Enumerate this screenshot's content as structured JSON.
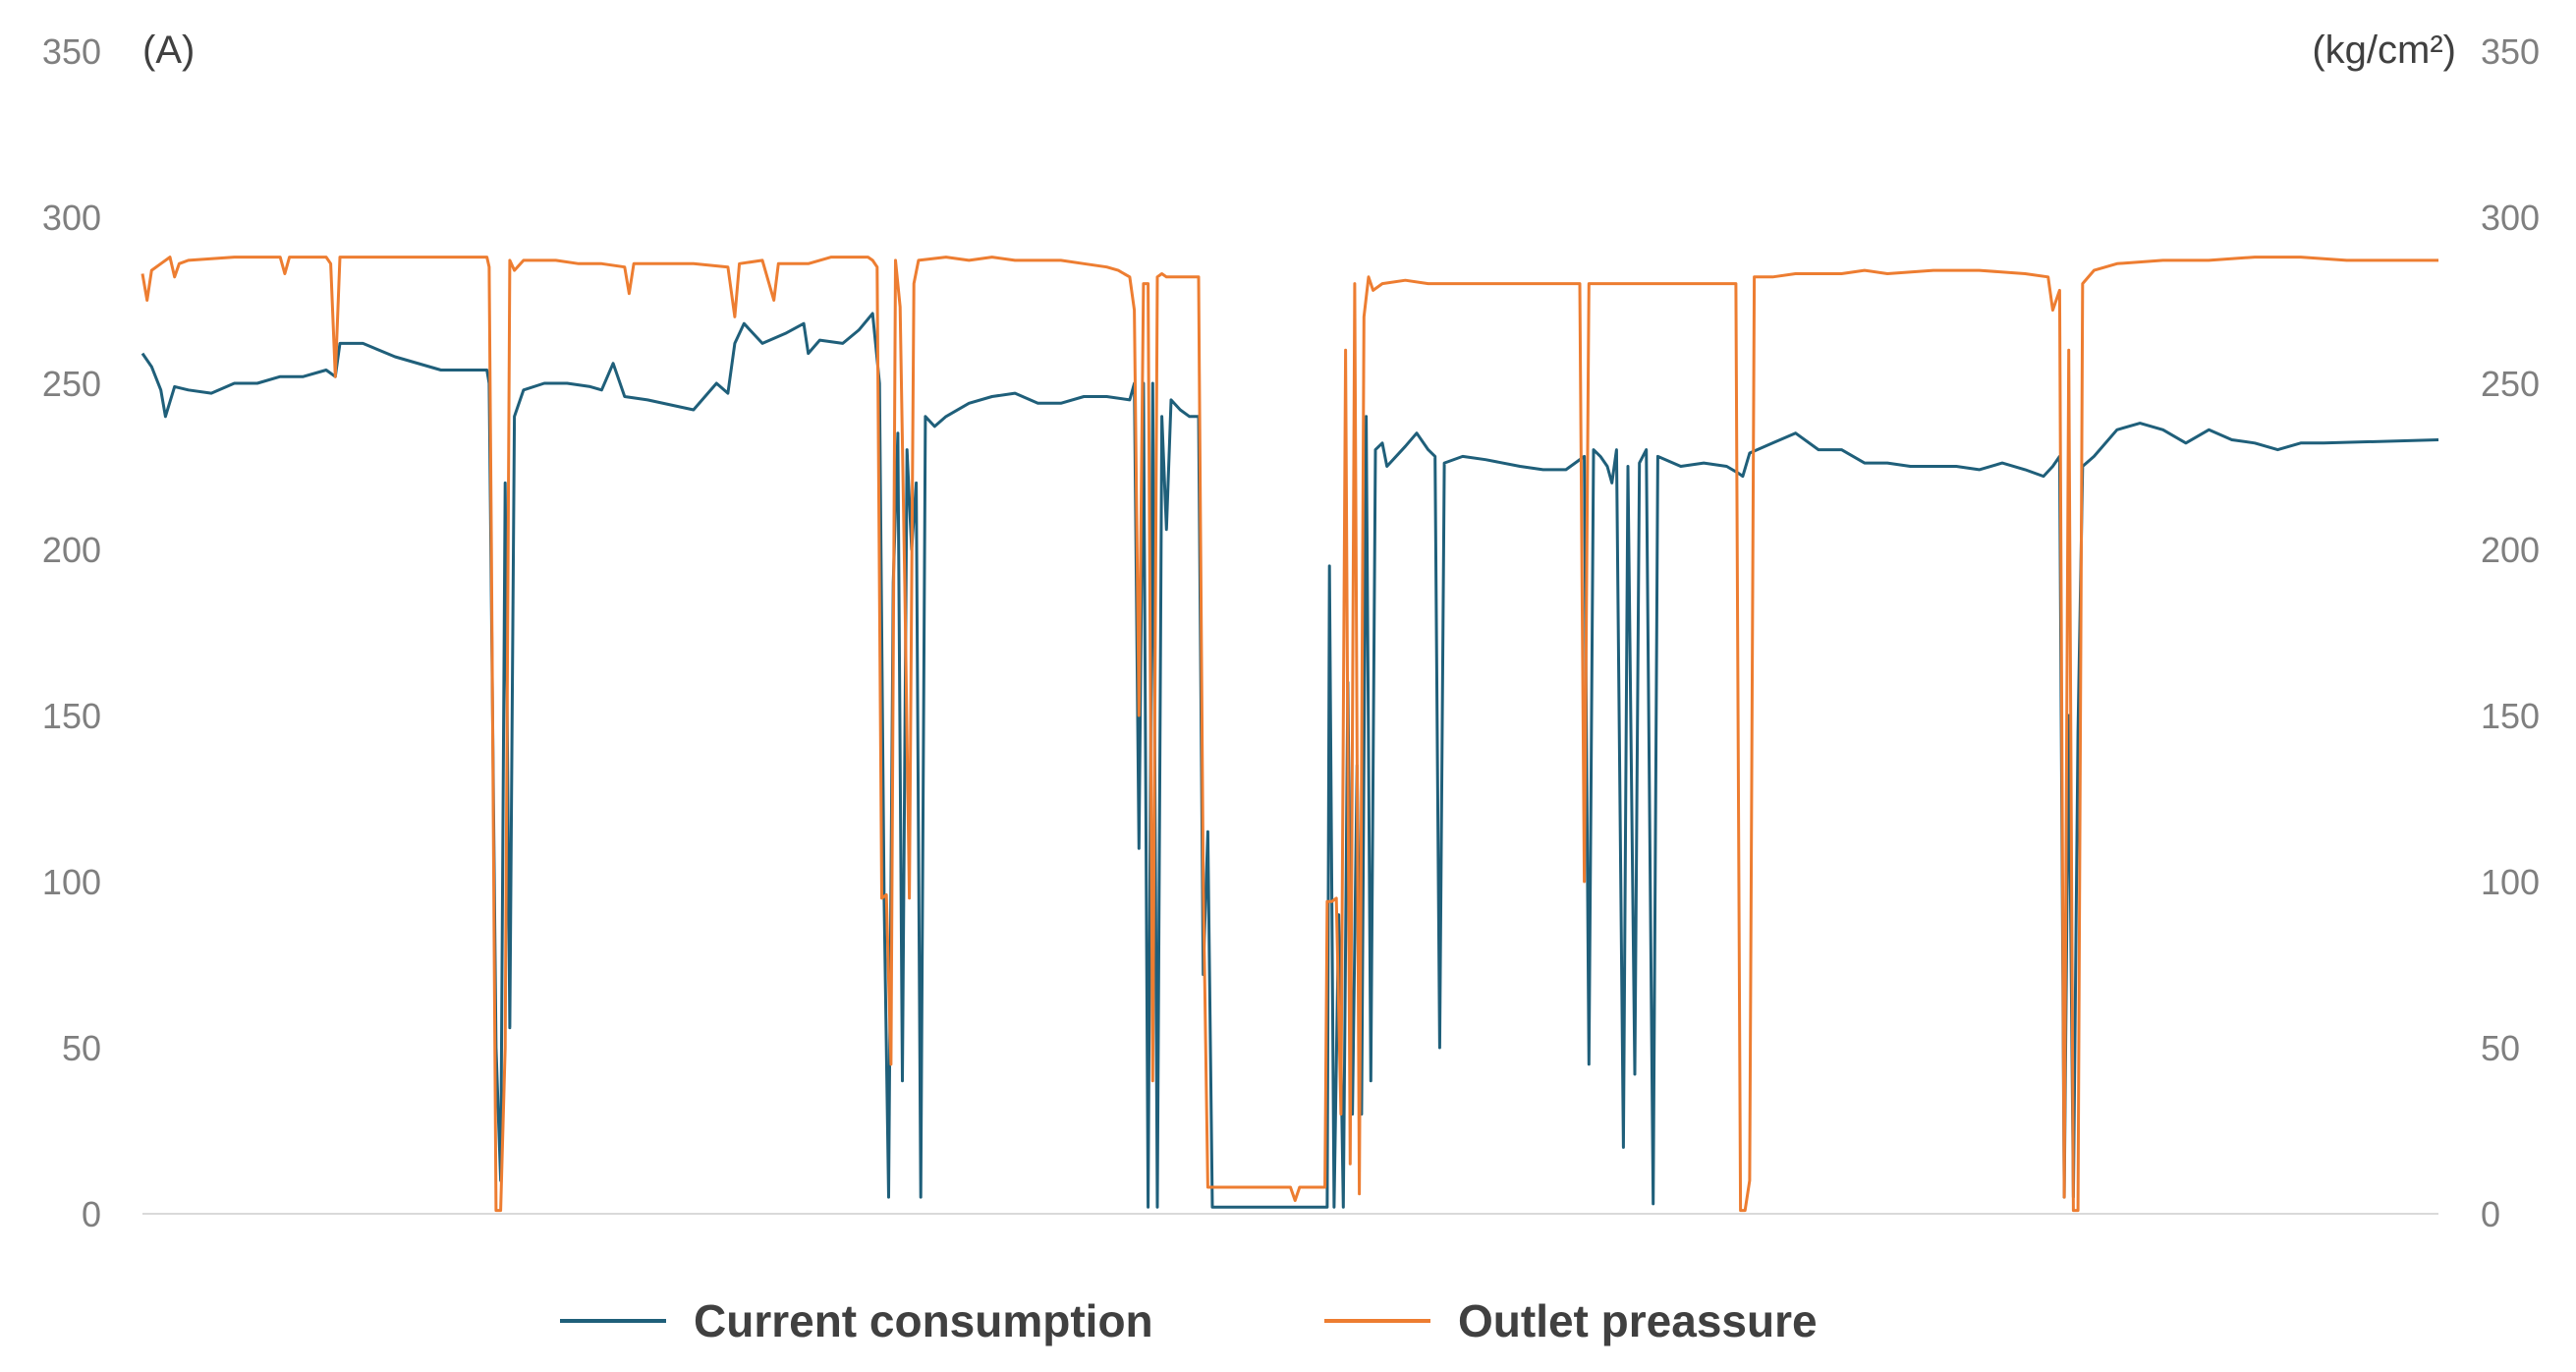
{
  "chart_data": {
    "type": "line",
    "title": "",
    "xlabel": "",
    "y_left": {
      "unit": "(A)",
      "range": [
        0,
        350
      ],
      "ticks": [
        0,
        50,
        100,
        150,
        200,
        250,
        300,
        350
      ]
    },
    "y_right": {
      "unit": "(kg/cm²)",
      "range": [
        0,
        350
      ],
      "ticks": [
        0,
        50,
        100,
        150,
        200,
        250,
        300,
        350
      ]
    },
    "x_range": [
      0,
      1000
    ],
    "grid": false,
    "legend_position": "bottom-center",
    "colors": {
      "current": "#1f5f7a",
      "pressure": "#ed7d31"
    },
    "series": [
      {
        "name": "Current consumption",
        "axis": "left",
        "points": [
          [
            0,
            259
          ],
          [
            4,
            255
          ],
          [
            8,
            248
          ],
          [
            10,
            240
          ],
          [
            14,
            249
          ],
          [
            20,
            248
          ],
          [
            30,
            247
          ],
          [
            40,
            250
          ],
          [
            50,
            250
          ],
          [
            60,
            252
          ],
          [
            70,
            252
          ],
          [
            80,
            254
          ],
          [
            84,
            252
          ],
          [
            86,
            262
          ],
          [
            96,
            262
          ],
          [
            110,
            258
          ],
          [
            130,
            254
          ],
          [
            150,
            254
          ],
          [
            151,
            250
          ],
          [
            154,
            50
          ],
          [
            156,
            10
          ],
          [
            158,
            220
          ],
          [
            160,
            56
          ],
          [
            162,
            240
          ],
          [
            166,
            248
          ],
          [
            175,
            250
          ],
          [
            185,
            250
          ],
          [
            195,
            249
          ],
          [
            200,
            248
          ],
          [
            205,
            256
          ],
          [
            210,
            246
          ],
          [
            220,
            245
          ],
          [
            240,
            242
          ],
          [
            250,
            250
          ],
          [
            255,
            247
          ],
          [
            258,
            262
          ],
          [
            262,
            268
          ],
          [
            270,
            262
          ],
          [
            280,
            265
          ],
          [
            288,
            268
          ],
          [
            290,
            259
          ],
          [
            295,
            263
          ],
          [
            305,
            262
          ],
          [
            312,
            266
          ],
          [
            318,
            271
          ],
          [
            321,
            250
          ],
          [
            323,
            95
          ],
          [
            325,
            5
          ],
          [
            327,
            190
          ],
          [
            329,
            235
          ],
          [
            331,
            40
          ],
          [
            333,
            230
          ],
          [
            335,
            200
          ],
          [
            337,
            220
          ],
          [
            339,
            5
          ],
          [
            341,
            240
          ],
          [
            345,
            237
          ],
          [
            350,
            240
          ],
          [
            360,
            244
          ],
          [
            370,
            246
          ],
          [
            380,
            247
          ],
          [
            390,
            244
          ],
          [
            400,
            244
          ],
          [
            410,
            246
          ],
          [
            420,
            246
          ],
          [
            430,
            245
          ],
          [
            432,
            250
          ],
          [
            434,
            110
          ],
          [
            436,
            250
          ],
          [
            438,
            2
          ],
          [
            440,
            250
          ],
          [
            442,
            2
          ],
          [
            444,
            240
          ],
          [
            446,
            206
          ],
          [
            448,
            245
          ],
          [
            452,
            242
          ],
          [
            456,
            240
          ],
          [
            460,
            240
          ],
          [
            462,
            72
          ],
          [
            464,
            115
          ],
          [
            466,
            2
          ],
          [
            470,
            2
          ],
          [
            480,
            2
          ],
          [
            490,
            2
          ],
          [
            500,
            2
          ],
          [
            510,
            2
          ],
          [
            516,
            2
          ],
          [
            517,
            195
          ],
          [
            519,
            2
          ],
          [
            521,
            90
          ],
          [
            523,
            2
          ],
          [
            525,
            160
          ],
          [
            527,
            30
          ],
          [
            529,
            135
          ],
          [
            531,
            30
          ],
          [
            533,
            240
          ],
          [
            535,
            40
          ],
          [
            537,
            230
          ],
          [
            540,
            232
          ],
          [
            542,
            225
          ],
          [
            550,
            231
          ],
          [
            555,
            235
          ],
          [
            560,
            230
          ],
          [
            563,
            228
          ],
          [
            565,
            50
          ],
          [
            567,
            226
          ],
          [
            575,
            228
          ],
          [
            585,
            227
          ],
          [
            600,
            225
          ],
          [
            610,
            224
          ],
          [
            620,
            224
          ],
          [
            628,
            228
          ],
          [
            630,
            45
          ],
          [
            632,
            230
          ],
          [
            635,
            228
          ],
          [
            638,
            225
          ],
          [
            640,
            220
          ],
          [
            642,
            230
          ],
          [
            645,
            20
          ],
          [
            647,
            225
          ],
          [
            650,
            42
          ],
          [
            652,
            226
          ],
          [
            655,
            230
          ],
          [
            658,
            3
          ],
          [
            660,
            228
          ],
          [
            670,
            225
          ],
          [
            680,
            226
          ],
          [
            690,
            225
          ],
          [
            695,
            223
          ],
          [
            697,
            222
          ],
          [
            700,
            229
          ],
          [
            710,
            232
          ],
          [
            720,
            235
          ],
          [
            730,
            230
          ],
          [
            740,
            230
          ],
          [
            750,
            226
          ],
          [
            760,
            226
          ],
          [
            770,
            225
          ],
          [
            780,
            225
          ],
          [
            790,
            225
          ],
          [
            800,
            224
          ],
          [
            810,
            226
          ],
          [
            820,
            224
          ],
          [
            828,
            222
          ],
          [
            832,
            225
          ],
          [
            835,
            228
          ],
          [
            837,
            5
          ],
          [
            839,
            150
          ],
          [
            841,
            5
          ],
          [
            843,
            145
          ],
          [
            845,
            225
          ],
          [
            850,
            228
          ],
          [
            860,
            236
          ],
          [
            870,
            238
          ],
          [
            880,
            236
          ],
          [
            890,
            232
          ],
          [
            900,
            236
          ],
          [
            910,
            233
          ],
          [
            920,
            232
          ],
          [
            930,
            230
          ],
          [
            940,
            232
          ],
          [
            950,
            232
          ],
          [
            1000,
            233
          ]
        ]
      },
      {
        "name": "Outlet preassure",
        "axis": "right",
        "points": [
          [
            0,
            283
          ],
          [
            2,
            275
          ],
          [
            4,
            284
          ],
          [
            8,
            286
          ],
          [
            12,
            288
          ],
          [
            14,
            282
          ],
          [
            16,
            286
          ],
          [
            20,
            287
          ],
          [
            40,
            288
          ],
          [
            60,
            288
          ],
          [
            62,
            283
          ],
          [
            64,
            288
          ],
          [
            80,
            288
          ],
          [
            82,
            286
          ],
          [
            84,
            252
          ],
          [
            86,
            288
          ],
          [
            100,
            288
          ],
          [
            120,
            288
          ],
          [
            140,
            288
          ],
          [
            150,
            288
          ],
          [
            151,
            285
          ],
          [
            152,
            200
          ],
          [
            154,
            1
          ],
          [
            156,
            1
          ],
          [
            158,
            50
          ],
          [
            160,
            287
          ],
          [
            162,
            284
          ],
          [
            166,
            287
          ],
          [
            180,
            287
          ],
          [
            190,
            286
          ],
          [
            200,
            286
          ],
          [
            210,
            285
          ],
          [
            212,
            277
          ],
          [
            214,
            286
          ],
          [
            230,
            286
          ],
          [
            240,
            286
          ],
          [
            255,
            285
          ],
          [
            258,
            270
          ],
          [
            260,
            286
          ],
          [
            270,
            287
          ],
          [
            275,
            275
          ],
          [
            277,
            286
          ],
          [
            290,
            286
          ],
          [
            300,
            288
          ],
          [
            316,
            288
          ],
          [
            318,
            287
          ],
          [
            320,
            285
          ],
          [
            322,
            95
          ],
          [
            324,
            96
          ],
          [
            326,
            45
          ],
          [
            328,
            287
          ],
          [
            330,
            273
          ],
          [
            332,
            190
          ],
          [
            334,
            95
          ],
          [
            336,
            280
          ],
          [
            338,
            287
          ],
          [
            350,
            288
          ],
          [
            360,
            287
          ],
          [
            370,
            288
          ],
          [
            380,
            287
          ],
          [
            390,
            287
          ],
          [
            400,
            287
          ],
          [
            410,
            286
          ],
          [
            420,
            285
          ],
          [
            425,
            284
          ],
          [
            430,
            282
          ],
          [
            432,
            272
          ],
          [
            434,
            150
          ],
          [
            436,
            280
          ],
          [
            438,
            280
          ],
          [
            440,
            40
          ],
          [
            442,
            282
          ],
          [
            444,
            283
          ],
          [
            446,
            282
          ],
          [
            450,
            282
          ],
          [
            460,
            282
          ],
          [
            462,
            100
          ],
          [
            464,
            8
          ],
          [
            470,
            8
          ],
          [
            480,
            8
          ],
          [
            490,
            8
          ],
          [
            500,
            8
          ],
          [
            502,
            4
          ],
          [
            504,
            8
          ],
          [
            510,
            8
          ],
          [
            515,
            8
          ],
          [
            516,
            94
          ],
          [
            518,
            94
          ],
          [
            520,
            95
          ],
          [
            522,
            30
          ],
          [
            524,
            260
          ],
          [
            526,
            15
          ],
          [
            528,
            280
          ],
          [
            530,
            6
          ],
          [
            532,
            270
          ],
          [
            534,
            282
          ],
          [
            536,
            278
          ],
          [
            540,
            280
          ],
          [
            550,
            281
          ],
          [
            560,
            280
          ],
          [
            570,
            280
          ],
          [
            580,
            280
          ],
          [
            590,
            280
          ],
          [
            600,
            280
          ],
          [
            610,
            280
          ],
          [
            620,
            280
          ],
          [
            626,
            280
          ],
          [
            628,
            100
          ],
          [
            630,
            280
          ],
          [
            640,
            280
          ],
          [
            650,
            280
          ],
          [
            660,
            280
          ],
          [
            670,
            280
          ],
          [
            680,
            280
          ],
          [
            690,
            280
          ],
          [
            694,
            280
          ],
          [
            696,
            1
          ],
          [
            698,
            1
          ],
          [
            700,
            10
          ],
          [
            702,
            282
          ],
          [
            710,
            282
          ],
          [
            720,
            283
          ],
          [
            740,
            283
          ],
          [
            750,
            284
          ],
          [
            760,
            283
          ],
          [
            780,
            284
          ],
          [
            800,
            284
          ],
          [
            820,
            283
          ],
          [
            830,
            282
          ],
          [
            832,
            272
          ],
          [
            835,
            278
          ],
          [
            837,
            5
          ],
          [
            839,
            260
          ],
          [
            841,
            1
          ],
          [
            843,
            1
          ],
          [
            845,
            280
          ],
          [
            850,
            284
          ],
          [
            860,
            286
          ],
          [
            880,
            287
          ],
          [
            900,
            287
          ],
          [
            920,
            288
          ],
          [
            940,
            288
          ],
          [
            960,
            287
          ],
          [
            980,
            287
          ],
          [
            1000,
            287
          ]
        ]
      }
    ]
  }
}
